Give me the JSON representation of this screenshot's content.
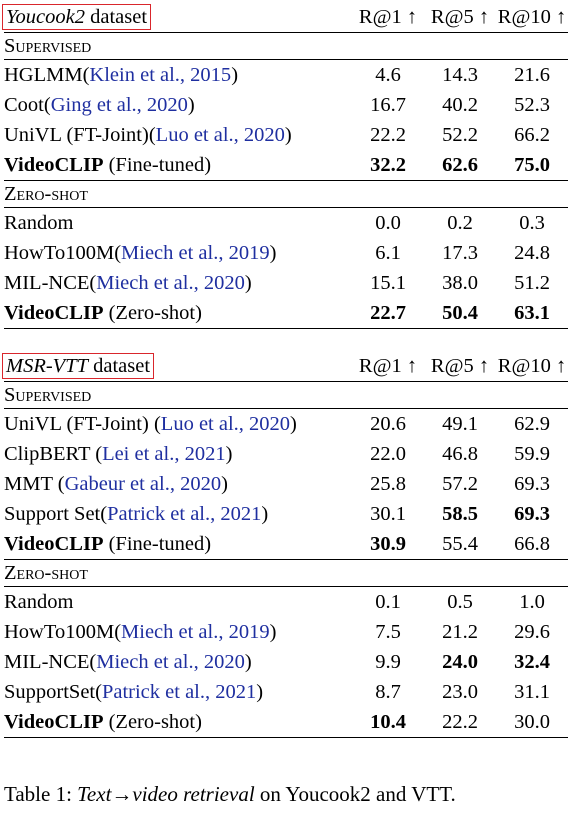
{
  "tables": [
    {
      "dataset_name": "Youcook2",
      "dataset_suffix": " dataset",
      "headers": [
        "R@1 ↑",
        "R@5 ↑",
        "R@10 ↑"
      ],
      "sections": [
        {
          "label": "Supervised",
          "rows": [
            {
              "method": "HGLMM",
              "cite": "Klein et al., 2015",
              "values": [
                "4.6",
                "14.3",
                "21.6"
              ],
              "bold": [
                false,
                false,
                false
              ]
            },
            {
              "method": "Coot",
              "cite": "Ging et al., 2020",
              "values": [
                "16.7",
                "40.2",
                "52.3"
              ],
              "bold": [
                false,
                false,
                false
              ]
            },
            {
              "method": "UniVL (FT-Joint)",
              "cite": "Luo et al., 2020",
              "values": [
                "22.2",
                "52.2",
                "66.2"
              ],
              "bold": [
                false,
                false,
                false
              ]
            },
            {
              "method_bold": "VideoCLIP",
              "method_rest": " (Fine-tuned)",
              "values": [
                "32.2",
                "62.6",
                "75.0"
              ],
              "bold": [
                true,
                true,
                true
              ]
            }
          ]
        },
        {
          "label": "Zero-shot",
          "rows": [
            {
              "method": "Random",
              "values": [
                "0.0",
                "0.2",
                "0.3"
              ],
              "bold": [
                false,
                false,
                false
              ]
            },
            {
              "method": "HowTo100M",
              "cite": "Miech et al., 2019",
              "values": [
                "6.1",
                "17.3",
                "24.8"
              ],
              "bold": [
                false,
                false,
                false
              ]
            },
            {
              "method": "MIL-NCE",
              "cite": "Miech et al., 2020",
              "values": [
                "15.1",
                "38.0",
                "51.2"
              ],
              "bold": [
                false,
                false,
                false
              ]
            },
            {
              "method_bold": "VideoCLIP",
              "method_rest": " (Zero-shot)",
              "values": [
                "22.7",
                "50.4",
                "63.1"
              ],
              "bold": [
                true,
                true,
                true
              ]
            }
          ]
        }
      ]
    },
    {
      "dataset_name": "MSR-VTT",
      "dataset_suffix": " dataset",
      "headers": [
        "R@1 ↑",
        "R@5 ↑",
        "R@10 ↑"
      ],
      "sections": [
        {
          "label": "Supervised",
          "rows": [
            {
              "method": "UniVL (FT-Joint) ",
              "cite": "Luo et al., 2020",
              "values": [
                "20.6",
                "49.1",
                "62.9"
              ],
              "bold": [
                false,
                false,
                false
              ]
            },
            {
              "method": "ClipBERT ",
              "cite": "Lei et al., 2021",
              "values": [
                "22.0",
                "46.8",
                "59.9"
              ],
              "bold": [
                false,
                false,
                false
              ]
            },
            {
              "method": "MMT ",
              "cite": "Gabeur et al., 2020",
              "values": [
                "25.8",
                "57.2",
                "69.3"
              ],
              "bold": [
                false,
                false,
                false
              ]
            },
            {
              "method": "Support Set",
              "cite": "Patrick et al., 2021",
              "values": [
                "30.1",
                "58.5",
                "69.3"
              ],
              "bold": [
                false,
                true,
                true
              ]
            },
            {
              "method_bold": "VideoCLIP",
              "method_rest": " (Fine-tuned)",
              "values": [
                "30.9",
                "55.4",
                "66.8"
              ],
              "bold": [
                true,
                false,
                false
              ]
            }
          ]
        },
        {
          "label": "Zero-shot",
          "rows": [
            {
              "method": "Random",
              "values": [
                "0.1",
                "0.5",
                "1.0"
              ],
              "bold": [
                false,
                false,
                false
              ]
            },
            {
              "method": "HowTo100M",
              "cite": "Miech et al., 2019",
              "values": [
                "7.5",
                "21.2",
                "29.6"
              ],
              "bold": [
                false,
                false,
                false
              ]
            },
            {
              "method": "MIL-NCE",
              "cite": "Miech et al., 2020",
              "values": [
                "9.9",
                "24.0",
                "32.4"
              ],
              "bold": [
                false,
                true,
                true
              ]
            },
            {
              "method": "SupportSet",
              "cite": "Patrick et al., 2021",
              "values": [
                "8.7",
                "23.0",
                "31.1"
              ],
              "bold": [
                false,
                false,
                false
              ]
            },
            {
              "method_bold": "VideoCLIP",
              "method_rest": " (Zero-shot)",
              "values": [
                "10.4",
                "22.2",
                "30.0"
              ],
              "bold": [
                true,
                false,
                false
              ]
            }
          ]
        }
      ]
    }
  ],
  "caption": {
    "prefix": "Table 1: ",
    "italic": "Text→video retrieval",
    "suffix": " on Youcook2 and VTT."
  },
  "colors": {
    "citation": "#1f2fa0",
    "dataset_box": "#d9262c"
  }
}
